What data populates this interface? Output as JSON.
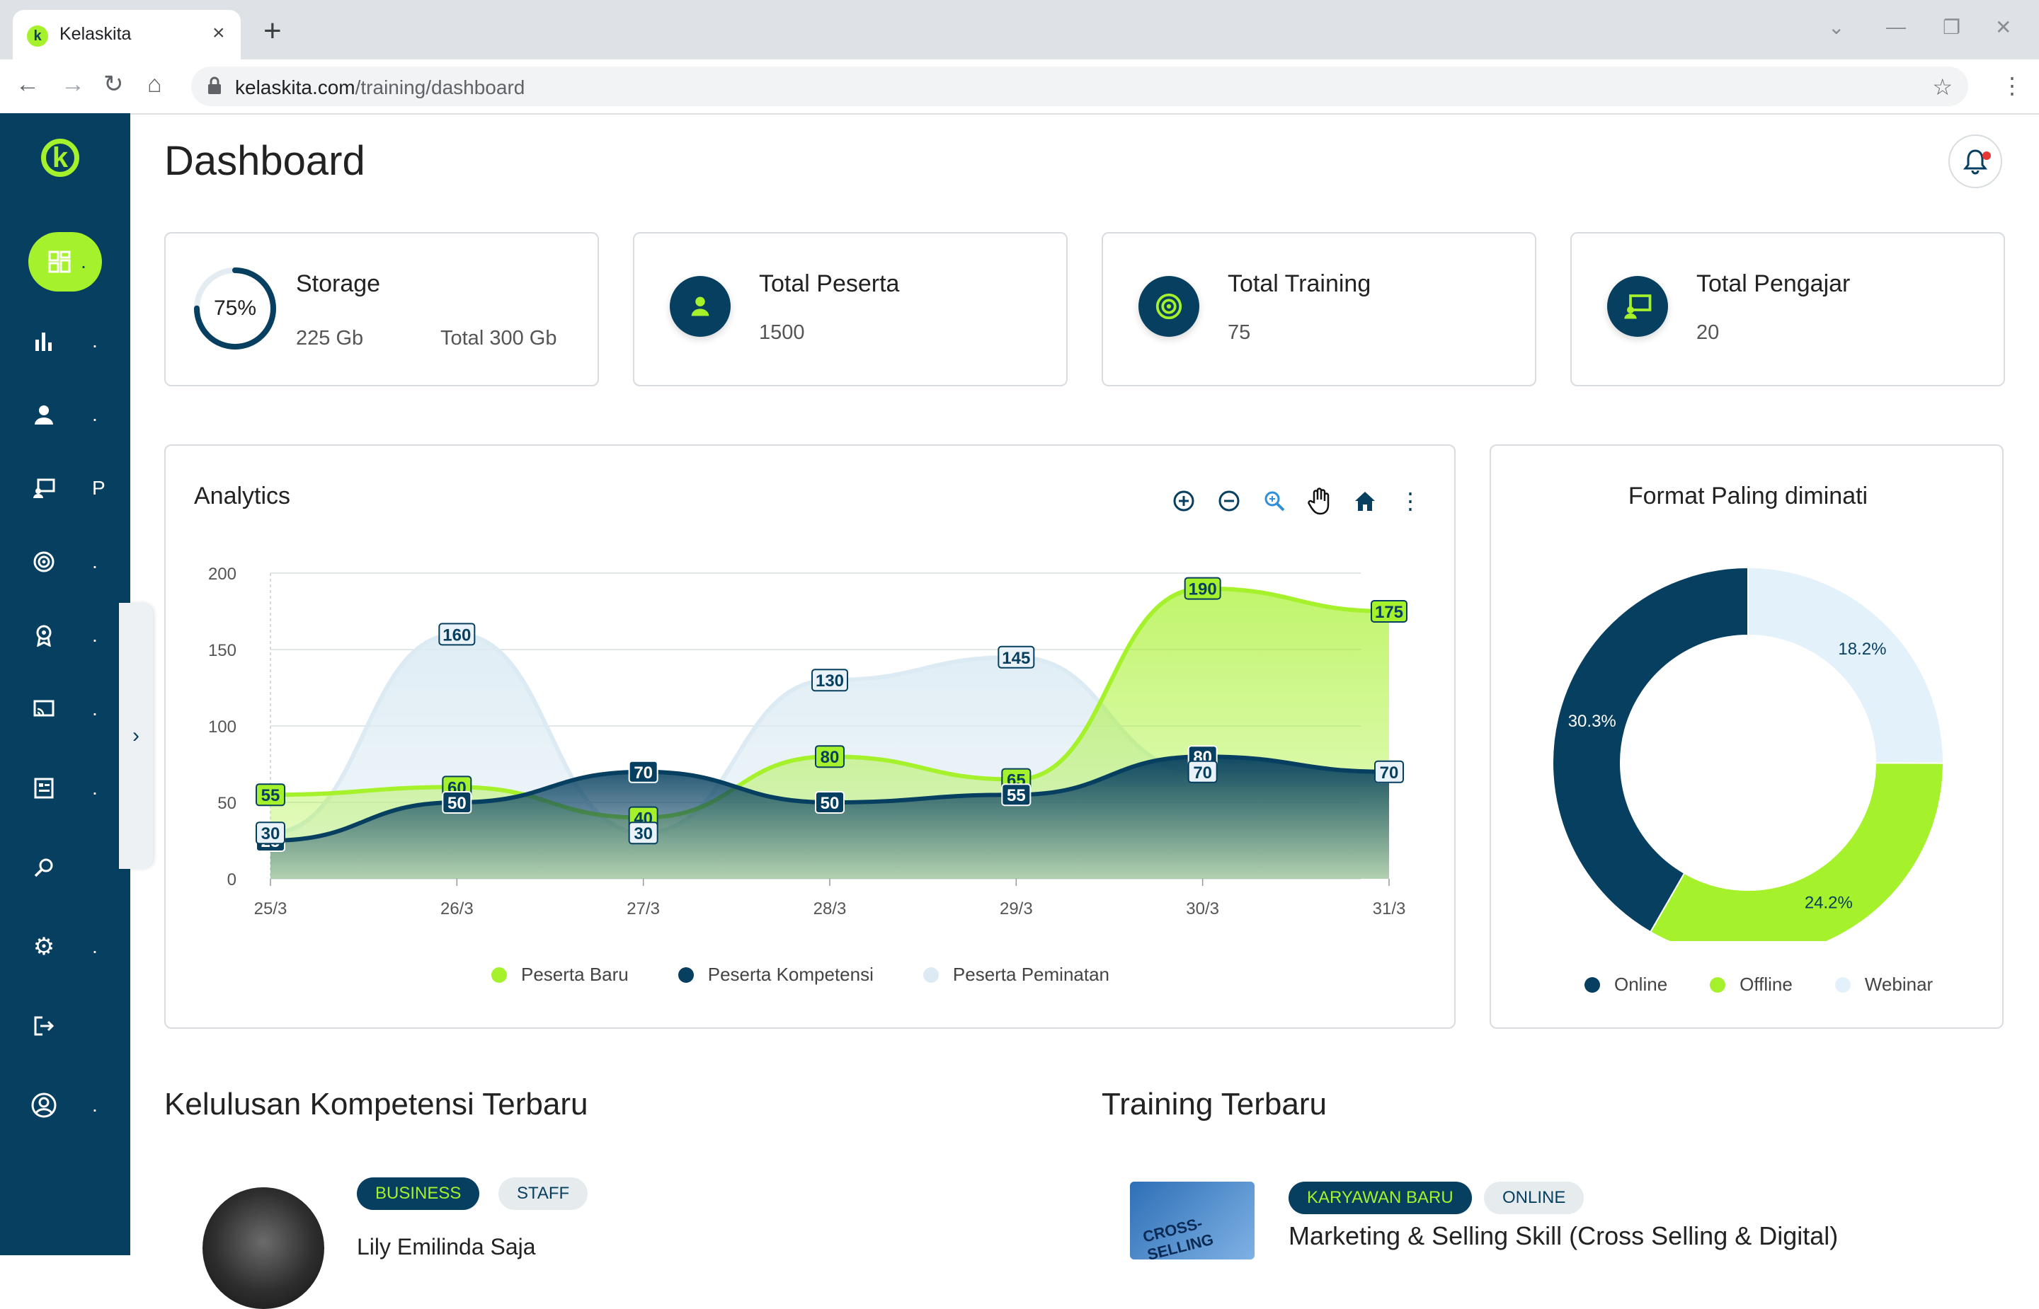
{
  "browser": {
    "tab_title": "Kelaskita",
    "tab_favicon_letter": "k",
    "url_domain": "kelaskita.com",
    "url_path": "/training/dashboard"
  },
  "sidebar": {
    "logo_letter": "k",
    "items": [
      {
        "icon": "dashboard-icon",
        "label": "."
      },
      {
        "icon": "bar-chart-icon",
        "label": "."
      },
      {
        "icon": "user-icon",
        "label": "."
      },
      {
        "icon": "presentation-icon",
        "label": "P"
      },
      {
        "icon": "target-icon",
        "label": "."
      },
      {
        "icon": "award-icon",
        "label": "."
      },
      {
        "icon": "cast-icon",
        "label": "."
      },
      {
        "icon": "report-icon",
        "label": "."
      },
      {
        "icon": "search-icon",
        "label": ""
      },
      {
        "icon": "gear-icon",
        "label": "."
      },
      {
        "icon": "logout-icon",
        "label": ""
      },
      {
        "icon": "account-circle-icon",
        "label": "."
      }
    ]
  },
  "header": {
    "title": "Dashboard"
  },
  "stats": {
    "storage": {
      "title": "Storage",
      "percent": 75,
      "percent_label": "75%",
      "used": "225 Gb",
      "total": "Total 300 Gb"
    },
    "peserta": {
      "title": "Total Peserta",
      "value": "1500"
    },
    "training": {
      "title": "Total Training",
      "value": "75"
    },
    "pengajar": {
      "title": "Total Pengajar",
      "value": "20"
    }
  },
  "analytics": {
    "title": "Analytics",
    "tools": [
      "zoom-in-icon",
      "zoom-out-icon",
      "magnify-icon",
      "pan-hand-icon",
      "home-icon",
      "more-vertical-icon"
    ]
  },
  "chart_data": [
    {
      "type": "area",
      "categories": [
        "25/3",
        "26/3",
        "27/3",
        "28/3",
        "29/3",
        "30/3",
        "31/3"
      ],
      "series": [
        {
          "name": "Peserta Baru",
          "values": [
            55,
            60,
            40,
            80,
            65,
            190,
            175
          ],
          "color": "#a5f12b"
        },
        {
          "name": "Peserta Kompetensi",
          "values": [
            25,
            50,
            70,
            50,
            55,
            80,
            70
          ],
          "color": "#063f5f"
        },
        {
          "name": "Peserta Peminatan",
          "values": [
            30,
            160,
            30,
            130,
            145,
            70,
            70
          ],
          "color": "#dcebf3"
        }
      ],
      "yticks": [
        0,
        50,
        100,
        150,
        200
      ],
      "ylim": [
        0,
        200
      ],
      "grid": true,
      "legend": "bottom"
    },
    {
      "type": "pie",
      "title": "Format Paling diminati",
      "labels": [
        "Webinar",
        "Offline",
        "Online"
      ],
      "values": [
        18.2,
        24.2,
        30.3
      ],
      "value_labels": [
        "18.2%",
        "24.2%",
        "30.3%"
      ],
      "colors": [
        "#e3f1fa",
        "#a5f12b",
        "#063f5f"
      ],
      "legend": "bottom"
    }
  ],
  "pie_legend": [
    "Online",
    "Offline",
    "Webinar"
  ],
  "kelulusan": {
    "title": "Kelulusan Kompetensi Terbaru",
    "tags": [
      "BUSINESS",
      "STAFF"
    ],
    "name": "Lily Emilinda Saja"
  },
  "training_terbaru": {
    "title": "Training Terbaru",
    "tags": [
      "KARYAWAN BARU",
      "ONLINE"
    ],
    "name": "Marketing & Selling Skill (Cross Selling & Digital)",
    "thumb_text": "CROSS-SELLING"
  },
  "colors": {
    "primary": "#063f5f",
    "accent": "#a5f12b",
    "light": "#dcebf3"
  }
}
